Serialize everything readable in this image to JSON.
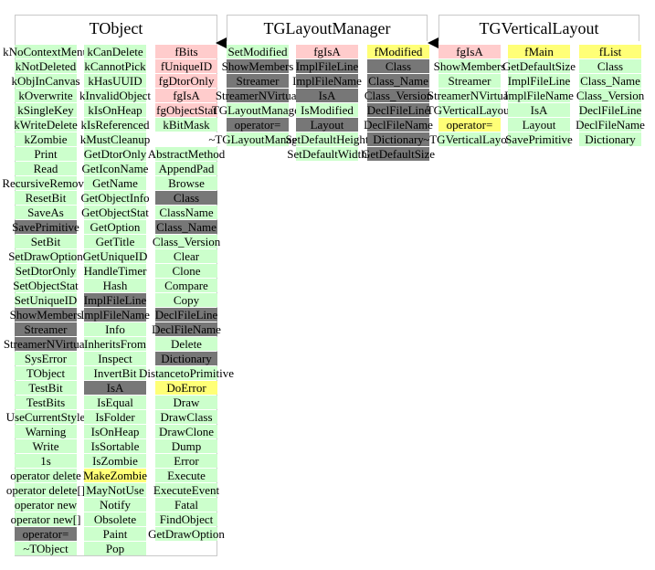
{
  "colors": {
    "green": "#ccffcc",
    "pink": "#ffcccc",
    "yellow": "#ffff77",
    "gray": "#777777",
    "border": "#c9c9c9"
  },
  "classes": [
    {
      "title": "TObject",
      "columns": [
        [
          {
            "t": "kNoContextMenu",
            "c": "g"
          },
          {
            "t": "kNotDeleted",
            "c": "g"
          },
          {
            "t": "kObjInCanvas",
            "c": "g"
          },
          {
            "t": "kOverwrite",
            "c": "g"
          },
          {
            "t": "kSingleKey",
            "c": "g"
          },
          {
            "t": "kWriteDelete",
            "c": "g"
          },
          {
            "t": "kZombie",
            "c": "g"
          },
          {
            "t": "Print",
            "c": "g"
          },
          {
            "t": "Read",
            "c": "g"
          },
          {
            "t": "RecursiveRemove",
            "c": "g"
          },
          {
            "t": "ResetBit",
            "c": "g"
          },
          {
            "t": "SaveAs",
            "c": "g"
          },
          {
            "t": "SavePrimitive",
            "c": "d"
          },
          {
            "t": "SetBit",
            "c": "g"
          },
          {
            "t": "SetDrawOption",
            "c": "g"
          },
          {
            "t": "SetDtorOnly",
            "c": "g"
          },
          {
            "t": "SetObjectStat",
            "c": "g"
          },
          {
            "t": "SetUniqueID",
            "c": "g"
          },
          {
            "t": "ShowMembers",
            "c": "d"
          },
          {
            "t": "Streamer",
            "c": "d"
          },
          {
            "t": "StreamerNVirtual",
            "c": "d"
          },
          {
            "t": "SysError",
            "c": "g"
          },
          {
            "t": "TObject",
            "c": "g"
          },
          {
            "t": "TestBit",
            "c": "g"
          },
          {
            "t": "TestBits",
            "c": "g"
          },
          {
            "t": "UseCurrentStyle",
            "c": "g"
          },
          {
            "t": "Warning",
            "c": "g"
          },
          {
            "t": "Write",
            "c": "g"
          },
          {
            "t": "1s",
            "c": "g"
          },
          {
            "t": "operator delete",
            "c": "g"
          },
          {
            "t": "operator delete[]",
            "c": "g"
          },
          {
            "t": "operator new",
            "c": "g"
          },
          {
            "t": "operator new[]",
            "c": "g"
          },
          {
            "t": "operator=",
            "c": "d"
          },
          {
            "t": "~TObject",
            "c": "g"
          }
        ],
        [
          {
            "t": "kCanDelete",
            "c": "g"
          },
          {
            "t": "kCannotPick",
            "c": "g"
          },
          {
            "t": "kHasUUID",
            "c": "g"
          },
          {
            "t": "kInvalidObject",
            "c": "g"
          },
          {
            "t": "kIsOnHeap",
            "c": "g"
          },
          {
            "t": "kIsReferenced",
            "c": "g"
          },
          {
            "t": "kMustCleanup",
            "c": "g"
          },
          {
            "t": "GetDtorOnly",
            "c": "g"
          },
          {
            "t": "GetIconName",
            "c": "g"
          },
          {
            "t": "GetName",
            "c": "g"
          },
          {
            "t": "GetObjectInfo",
            "c": "g"
          },
          {
            "t": "GetObjectStat",
            "c": "g"
          },
          {
            "t": "GetOption",
            "c": "g"
          },
          {
            "t": "GetTitle",
            "c": "g"
          },
          {
            "t": "GetUniqueID",
            "c": "g"
          },
          {
            "t": "HandleTimer",
            "c": "g"
          },
          {
            "t": "Hash",
            "c": "g"
          },
          {
            "t": "ImplFileLine",
            "c": "d"
          },
          {
            "t": "ImplFileName",
            "c": "d"
          },
          {
            "t": "Info",
            "c": "g"
          },
          {
            "t": "InheritsFrom",
            "c": "g"
          },
          {
            "t": "Inspect",
            "c": "g"
          },
          {
            "t": "InvertBit",
            "c": "g"
          },
          {
            "t": "IsA",
            "c": "d"
          },
          {
            "t": "IsEqual",
            "c": "g"
          },
          {
            "t": "IsFolder",
            "c": "g"
          },
          {
            "t": "IsOnHeap",
            "c": "g"
          },
          {
            "t": "IsSortable",
            "c": "g"
          },
          {
            "t": "IsZombie",
            "c": "g"
          },
          {
            "t": "MakeZombie",
            "c": "y"
          },
          {
            "t": "MayNotUse",
            "c": "g"
          },
          {
            "t": "Notify",
            "c": "g"
          },
          {
            "t": "Obsolete",
            "c": "g"
          },
          {
            "t": "Paint",
            "c": "g"
          },
          {
            "t": "Pop",
            "c": "g"
          }
        ],
        [
          {
            "t": "fBits",
            "c": "p"
          },
          {
            "t": "fUniqueID",
            "c": "p"
          },
          {
            "t": "fgDtorOnly",
            "c": "p"
          },
          {
            "t": "fgIsA",
            "c": "p"
          },
          {
            "t": "fgObjectStat",
            "c": "p"
          },
          {
            "t": "kBitMask",
            "c": "g"
          },
          {
            "t": "",
            "c": "w"
          },
          {
            "t": "AbstractMethod",
            "c": "g"
          },
          {
            "t": "AppendPad",
            "c": "g"
          },
          {
            "t": "Browse",
            "c": "g"
          },
          {
            "t": "Class",
            "c": "d"
          },
          {
            "t": "ClassName",
            "c": "g"
          },
          {
            "t": "Class_Name",
            "c": "d"
          },
          {
            "t": "Class_Version",
            "c": "g"
          },
          {
            "t": "Clear",
            "c": "g"
          },
          {
            "t": "Clone",
            "c": "g"
          },
          {
            "t": "Compare",
            "c": "g"
          },
          {
            "t": "Copy",
            "c": "g"
          },
          {
            "t": "DeclFileLine",
            "c": "d"
          },
          {
            "t": "DeclFileName",
            "c": "d"
          },
          {
            "t": "Delete",
            "c": "g"
          },
          {
            "t": "Dictionary",
            "c": "d"
          },
          {
            "t": "DistancetoPrimitive",
            "c": "g"
          },
          {
            "t": "DoError",
            "c": "y"
          },
          {
            "t": "Draw",
            "c": "g"
          },
          {
            "t": "DrawClass",
            "c": "g"
          },
          {
            "t": "DrawClone",
            "c": "g"
          },
          {
            "t": "Dump",
            "c": "g"
          },
          {
            "t": "Error",
            "c": "g"
          },
          {
            "t": "Execute",
            "c": "g"
          },
          {
            "t": "ExecuteEvent",
            "c": "g"
          },
          {
            "t": "Fatal",
            "c": "g"
          },
          {
            "t": "FindObject",
            "c": "g"
          },
          {
            "t": "GetDrawOption",
            "c": "g"
          }
        ]
      ]
    },
    {
      "title": "TGLayoutManager",
      "columns": [
        [
          {
            "t": "SetModified",
            "c": "g"
          },
          {
            "t": "ShowMembers",
            "c": "d"
          },
          {
            "t": "Streamer",
            "c": "d"
          },
          {
            "t": "StreamerNVirtual",
            "c": "d"
          },
          {
            "t": "TGLayoutManager",
            "c": "g"
          },
          {
            "t": "operator=",
            "c": "d"
          },
          {
            "t": "~TGLayoutManager",
            "c": "g"
          }
        ],
        [
          {
            "t": "fgIsA",
            "c": "p"
          },
          {
            "t": "ImplFileLine",
            "c": "d"
          },
          {
            "t": "ImplFileName",
            "c": "d"
          },
          {
            "t": "IsA",
            "c": "d"
          },
          {
            "t": "IsModified",
            "c": "g"
          },
          {
            "t": "Layout",
            "c": "d"
          },
          {
            "t": "SetDefaultHeight",
            "c": "g"
          },
          {
            "t": "SetDefaultWidth",
            "c": "g"
          }
        ],
        [
          {
            "t": "fModified",
            "c": "y"
          },
          {
            "t": "Class",
            "c": "d"
          },
          {
            "t": "Class_Name",
            "c": "d"
          },
          {
            "t": "Class_Version",
            "c": "d"
          },
          {
            "t": "DeclFileLine",
            "c": "d"
          },
          {
            "t": "DeclFileName",
            "c": "d"
          },
          {
            "t": "Dictionary",
            "c": "d"
          },
          {
            "t": "GetDefaultSize",
            "c": "d"
          }
        ]
      ]
    },
    {
      "title": "TGVerticalLayout",
      "columns": [
        [
          {
            "t": "fgIsA",
            "c": "p"
          },
          {
            "t": "ShowMembers",
            "c": "g"
          },
          {
            "t": "Streamer",
            "c": "g"
          },
          {
            "t": "StreamerNVirtual",
            "c": "g"
          },
          {
            "t": "TGVerticalLayout",
            "c": "g"
          },
          {
            "t": "operator=",
            "c": "y"
          },
          {
            "t": "~TGVerticalLayout",
            "c": "g"
          }
        ],
        [
          {
            "t": "fMain",
            "c": "y"
          },
          {
            "t": "GetDefaultSize",
            "c": "g"
          },
          {
            "t": "ImplFileLine",
            "c": "g"
          },
          {
            "t": "ImplFileName",
            "c": "g"
          },
          {
            "t": "IsA",
            "c": "g"
          },
          {
            "t": "Layout",
            "c": "g"
          },
          {
            "t": "SavePrimitive",
            "c": "g"
          }
        ],
        [
          {
            "t": "fList",
            "c": "y"
          },
          {
            "t": "Class",
            "c": "g"
          },
          {
            "t": "Class_Name",
            "c": "g"
          },
          {
            "t": "Class_Version",
            "c": "g"
          },
          {
            "t": "DeclFileLine",
            "c": "g"
          },
          {
            "t": "DeclFileName",
            "c": "g"
          },
          {
            "t": "Dictionary",
            "c": "g"
          }
        ]
      ]
    }
  ]
}
